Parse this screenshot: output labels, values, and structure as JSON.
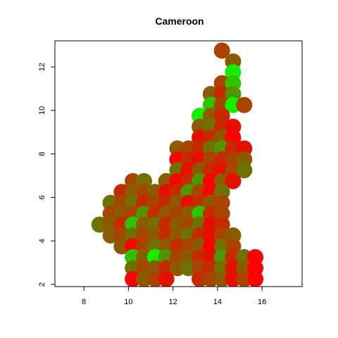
{
  "chart_data": {
    "type": "scatter",
    "title": "Cameroon",
    "xlabel": "",
    "ylabel": "",
    "xlim": [
      6.7,
      17.8
    ],
    "ylim": [
      1.9,
      13.2
    ],
    "x_ticks": [
      8,
      10,
      12,
      14,
      16
    ],
    "y_ticks": [
      2,
      4,
      6,
      8,
      10,
      12
    ],
    "grid": false,
    "legend": "none",
    "marker": "large filled circles, colors ranging from green to red",
    "palette": [
      "#ff0000",
      "#e31000",
      "#c62a00",
      "#a94400",
      "#8c5a00",
      "#6f7200",
      "#4f9600",
      "#2fc400",
      "#16ee00"
    ],
    "points": [
      {
        "x": 14.2,
        "y": 12.75,
        "c": 3
      },
      {
        "x": 14.7,
        "y": 12.25,
        "c": 4
      },
      {
        "x": 14.7,
        "y": 11.75,
        "c": 8
      },
      {
        "x": 14.2,
        "y": 11.25,
        "c": 3
      },
      {
        "x": 14.7,
        "y": 11.25,
        "c": 7
      },
      {
        "x": 13.7,
        "y": 10.75,
        "c": 4
      },
      {
        "x": 14.2,
        "y": 10.75,
        "c": 2
      },
      {
        "x": 14.7,
        "y": 10.75,
        "c": 6
      },
      {
        "x": 13.7,
        "y": 10.25,
        "c": 7
      },
      {
        "x": 14.2,
        "y": 10.25,
        "c": 3
      },
      {
        "x": 14.7,
        "y": 10.25,
        "c": 8
      },
      {
        "x": 15.2,
        "y": 10.25,
        "c": 3
      },
      {
        "x": 13.2,
        "y": 9.75,
        "c": 8
      },
      {
        "x": 13.7,
        "y": 9.75,
        "c": 4
      },
      {
        "x": 14.2,
        "y": 9.75,
        "c": 2
      },
      {
        "x": 13.2,
        "y": 9.25,
        "c": 4
      },
      {
        "x": 13.7,
        "y": 9.25,
        "c": 5
      },
      {
        "x": 14.2,
        "y": 9.25,
        "c": 2
      },
      {
        "x": 14.7,
        "y": 9.25,
        "c": 1
      },
      {
        "x": 13.2,
        "y": 8.75,
        "c": 1
      },
      {
        "x": 13.7,
        "y": 8.75,
        "c": 2
      },
      {
        "x": 14.2,
        "y": 8.75,
        "c": 4
      },
      {
        "x": 14.7,
        "y": 8.75,
        "c": 0
      },
      {
        "x": 12.2,
        "y": 8.25,
        "c": 4
      },
      {
        "x": 12.7,
        "y": 8.25,
        "c": 3
      },
      {
        "x": 13.2,
        "y": 8.25,
        "c": 2
      },
      {
        "x": 13.7,
        "y": 8.25,
        "c": 5
      },
      {
        "x": 14.2,
        "y": 8.25,
        "c": 6
      },
      {
        "x": 14.7,
        "y": 8.25,
        "c": 2
      },
      {
        "x": 15.2,
        "y": 8.25,
        "c": 1
      },
      {
        "x": 12.2,
        "y": 7.75,
        "c": 0
      },
      {
        "x": 12.7,
        "y": 7.75,
        "c": 2
      },
      {
        "x": 13.2,
        "y": 7.75,
        "c": 1
      },
      {
        "x": 13.7,
        "y": 7.75,
        "c": 3
      },
      {
        "x": 14.2,
        "y": 7.75,
        "c": 2
      },
      {
        "x": 14.7,
        "y": 7.75,
        "c": 3
      },
      {
        "x": 15.2,
        "y": 7.75,
        "c": 4
      },
      {
        "x": 12.2,
        "y": 7.25,
        "c": 5
      },
      {
        "x": 12.7,
        "y": 7.25,
        "c": 1
      },
      {
        "x": 13.2,
        "y": 7.25,
        "c": 4
      },
      {
        "x": 13.7,
        "y": 7.25,
        "c": 2
      },
      {
        "x": 14.2,
        "y": 7.25,
        "c": 1
      },
      {
        "x": 14.7,
        "y": 7.25,
        "c": 3
      },
      {
        "x": 15.2,
        "y": 7.25,
        "c": 5
      },
      {
        "x": 10.2,
        "y": 6.75,
        "c": 3
      },
      {
        "x": 10.7,
        "y": 6.75,
        "c": 5
      },
      {
        "x": 11.7,
        "y": 6.75,
        "c": 4
      },
      {
        "x": 12.2,
        "y": 6.75,
        "c": 0
      },
      {
        "x": 12.7,
        "y": 6.75,
        "c": 2
      },
      {
        "x": 13.2,
        "y": 6.75,
        "c": 6
      },
      {
        "x": 13.7,
        "y": 6.75,
        "c": 0
      },
      {
        "x": 14.2,
        "y": 6.75,
        "c": 4
      },
      {
        "x": 14.7,
        "y": 6.75,
        "c": 1
      },
      {
        "x": 9.7,
        "y": 6.25,
        "c": 2
      },
      {
        "x": 10.2,
        "y": 6.25,
        "c": 4
      },
      {
        "x": 10.7,
        "y": 6.25,
        "c": 3
      },
      {
        "x": 11.2,
        "y": 6.25,
        "c": 4
      },
      {
        "x": 11.7,
        "y": 6.25,
        "c": 1
      },
      {
        "x": 12.2,
        "y": 6.25,
        "c": 2
      },
      {
        "x": 12.7,
        "y": 6.25,
        "c": 6
      },
      {
        "x": 13.2,
        "y": 6.25,
        "c": 3
      },
      {
        "x": 13.7,
        "y": 6.25,
        "c": 0
      },
      {
        "x": 14.2,
        "y": 6.25,
        "c": 5
      },
      {
        "x": 9.2,
        "y": 5.75,
        "c": 5
      },
      {
        "x": 9.7,
        "y": 5.75,
        "c": 3
      },
      {
        "x": 10.2,
        "y": 5.75,
        "c": 5
      },
      {
        "x": 10.7,
        "y": 5.75,
        "c": 2
      },
      {
        "x": 11.2,
        "y": 5.75,
        "c": 3
      },
      {
        "x": 11.7,
        "y": 5.75,
        "c": 2
      },
      {
        "x": 12.2,
        "y": 5.75,
        "c": 4
      },
      {
        "x": 12.7,
        "y": 5.75,
        "c": 1
      },
      {
        "x": 13.2,
        "y": 5.75,
        "c": 2
      },
      {
        "x": 13.7,
        "y": 5.75,
        "c": 4
      },
      {
        "x": 14.2,
        "y": 5.75,
        "c": 3
      },
      {
        "x": 9.2,
        "y": 5.25,
        "c": 3
      },
      {
        "x": 9.7,
        "y": 5.25,
        "c": 4
      },
      {
        "x": 10.2,
        "y": 5.25,
        "c": 3
      },
      {
        "x": 10.7,
        "y": 5.25,
        "c": 6
      },
      {
        "x": 11.2,
        "y": 5.25,
        "c": 2
      },
      {
        "x": 11.7,
        "y": 5.25,
        "c": 4
      },
      {
        "x": 12.2,
        "y": 5.25,
        "c": 3
      },
      {
        "x": 12.7,
        "y": 5.25,
        "c": 4
      },
      {
        "x": 13.2,
        "y": 5.25,
        "c": 7
      },
      {
        "x": 13.7,
        "y": 5.25,
        "c": 2
      },
      {
        "x": 14.2,
        "y": 5.25,
        "c": 3
      },
      {
        "x": 8.7,
        "y": 4.75,
        "c": 5
      },
      {
        "x": 9.2,
        "y": 4.75,
        "c": 4
      },
      {
        "x": 9.7,
        "y": 4.75,
        "c": 2
      },
      {
        "x": 10.2,
        "y": 4.75,
        "c": 7
      },
      {
        "x": 10.7,
        "y": 4.75,
        "c": 4
      },
      {
        "x": 11.2,
        "y": 4.75,
        "c": 5
      },
      {
        "x": 11.7,
        "y": 4.75,
        "c": 2
      },
      {
        "x": 12.2,
        "y": 4.75,
        "c": 4
      },
      {
        "x": 12.7,
        "y": 4.75,
        "c": 3
      },
      {
        "x": 13.2,
        "y": 4.75,
        "c": 5
      },
      {
        "x": 13.7,
        "y": 4.75,
        "c": 1
      },
      {
        "x": 14.2,
        "y": 4.75,
        "c": 2
      },
      {
        "x": 9.2,
        "y": 4.25,
        "c": 4
      },
      {
        "x": 9.7,
        "y": 4.25,
        "c": 3
      },
      {
        "x": 10.2,
        "y": 4.25,
        "c": 5
      },
      {
        "x": 10.7,
        "y": 4.25,
        "c": 3
      },
      {
        "x": 11.2,
        "y": 4.25,
        "c": 4
      },
      {
        "x": 11.7,
        "y": 4.25,
        "c": 2
      },
      {
        "x": 12.2,
        "y": 4.25,
        "c": 4
      },
      {
        "x": 12.7,
        "y": 4.25,
        "c": 5
      },
      {
        "x": 13.2,
        "y": 4.25,
        "c": 2
      },
      {
        "x": 13.7,
        "y": 4.25,
        "c": 1
      },
      {
        "x": 14.2,
        "y": 4.25,
        "c": 3
      },
      {
        "x": 14.7,
        "y": 4.25,
        "c": 4
      },
      {
        "x": 9.7,
        "y": 3.75,
        "c": 4
      },
      {
        "x": 10.2,
        "y": 3.75,
        "c": 0
      },
      {
        "x": 10.7,
        "y": 3.75,
        "c": 3
      },
      {
        "x": 11.2,
        "y": 3.75,
        "c": 5
      },
      {
        "x": 11.7,
        "y": 3.75,
        "c": 4
      },
      {
        "x": 12.2,
        "y": 3.75,
        "c": 2
      },
      {
        "x": 12.7,
        "y": 3.75,
        "c": 3
      },
      {
        "x": 13.2,
        "y": 3.75,
        "c": 4
      },
      {
        "x": 13.7,
        "y": 3.75,
        "c": 0
      },
      {
        "x": 14.2,
        "y": 3.75,
        "c": 5
      },
      {
        "x": 14.7,
        "y": 3.75,
        "c": 3
      },
      {
        "x": 10.2,
        "y": 3.25,
        "c": 7
      },
      {
        "x": 10.7,
        "y": 3.25,
        "c": 4
      },
      {
        "x": 11.2,
        "y": 3.25,
        "c": 8
      },
      {
        "x": 11.7,
        "y": 3.25,
        "c": 6
      },
      {
        "x": 12.2,
        "y": 3.25,
        "c": 3
      },
      {
        "x": 12.7,
        "y": 3.25,
        "c": 4
      },
      {
        "x": 13.2,
        "y": 3.25,
        "c": 2
      },
      {
        "x": 13.7,
        "y": 3.25,
        "c": 1
      },
      {
        "x": 14.2,
        "y": 3.25,
        "c": 6
      },
      {
        "x": 14.7,
        "y": 3.25,
        "c": 2
      },
      {
        "x": 15.2,
        "y": 3.25,
        "c": 5
      },
      {
        "x": 15.7,
        "y": 3.25,
        "c": 0
      },
      {
        "x": 10.2,
        "y": 2.75,
        "c": 5
      },
      {
        "x": 10.7,
        "y": 2.75,
        "c": 3
      },
      {
        "x": 11.2,
        "y": 2.75,
        "c": 4
      },
      {
        "x": 11.7,
        "y": 2.75,
        "c": 2
      },
      {
        "x": 12.2,
        "y": 2.75,
        "c": 4
      },
      {
        "x": 12.7,
        "y": 2.75,
        "c": 5
      },
      {
        "x": 13.2,
        "y": 2.75,
        "c": 3
      },
      {
        "x": 13.7,
        "y": 2.75,
        "c": 2
      },
      {
        "x": 14.2,
        "y": 2.75,
        "c": 5
      },
      {
        "x": 14.7,
        "y": 2.75,
        "c": 1
      },
      {
        "x": 15.2,
        "y": 2.75,
        "c": 4
      },
      {
        "x": 15.7,
        "y": 2.75,
        "c": 0
      },
      {
        "x": 10.2,
        "y": 2.25,
        "c": 0
      },
      {
        "x": 10.7,
        "y": 2.25,
        "c": 4
      },
      {
        "x": 11.2,
        "y": 2.25,
        "c": 3
      },
      {
        "x": 11.7,
        "y": 2.25,
        "c": 1
      },
      {
        "x": 13.2,
        "y": 2.25,
        "c": 2
      },
      {
        "x": 13.7,
        "y": 2.25,
        "c": 3
      },
      {
        "x": 14.2,
        "y": 2.25,
        "c": 4
      },
      {
        "x": 14.7,
        "y": 2.25,
        "c": 1
      },
      {
        "x": 15.2,
        "y": 2.25,
        "c": 3
      },
      {
        "x": 15.7,
        "y": 2.25,
        "c": 0
      }
    ]
  }
}
